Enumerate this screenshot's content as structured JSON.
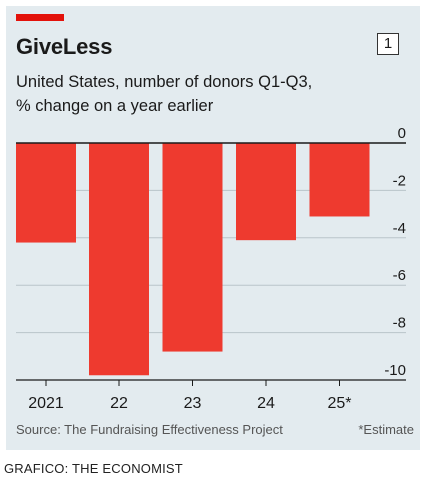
{
  "header": {
    "title": "GiveLess",
    "chart_number": "1",
    "subtitle_line1": "United States, number of donors Q1-Q3,",
    "subtitle_line2": "% change on a year earlier"
  },
  "footer": {
    "source": "Source: The Fundraising Effectiveness Project",
    "footnote": "*Estimate",
    "credit": "GRAFICO: THE ECONOMIST"
  },
  "colors": {
    "bar": "#ee3a2f",
    "accent": "#e3120b",
    "background": "#e3ebef",
    "grid": "#b9c4ca",
    "zero_line": "#1a1a1a"
  },
  "chart_data": {
    "type": "bar",
    "categories": [
      "2021",
      "22",
      "23",
      "24",
      "25*"
    ],
    "values": [
      -4.2,
      -9.8,
      -8.8,
      -4.1,
      -3.1
    ],
    "ylim": [
      -10,
      0
    ],
    "yticks": [
      0,
      -2,
      -4,
      -6,
      -8,
      -10
    ],
    "ytick_labels": [
      "0",
      "-2",
      "-4",
      "-6",
      "-8",
      "-10"
    ],
    "y_axis_position": "right",
    "grid": true
  }
}
